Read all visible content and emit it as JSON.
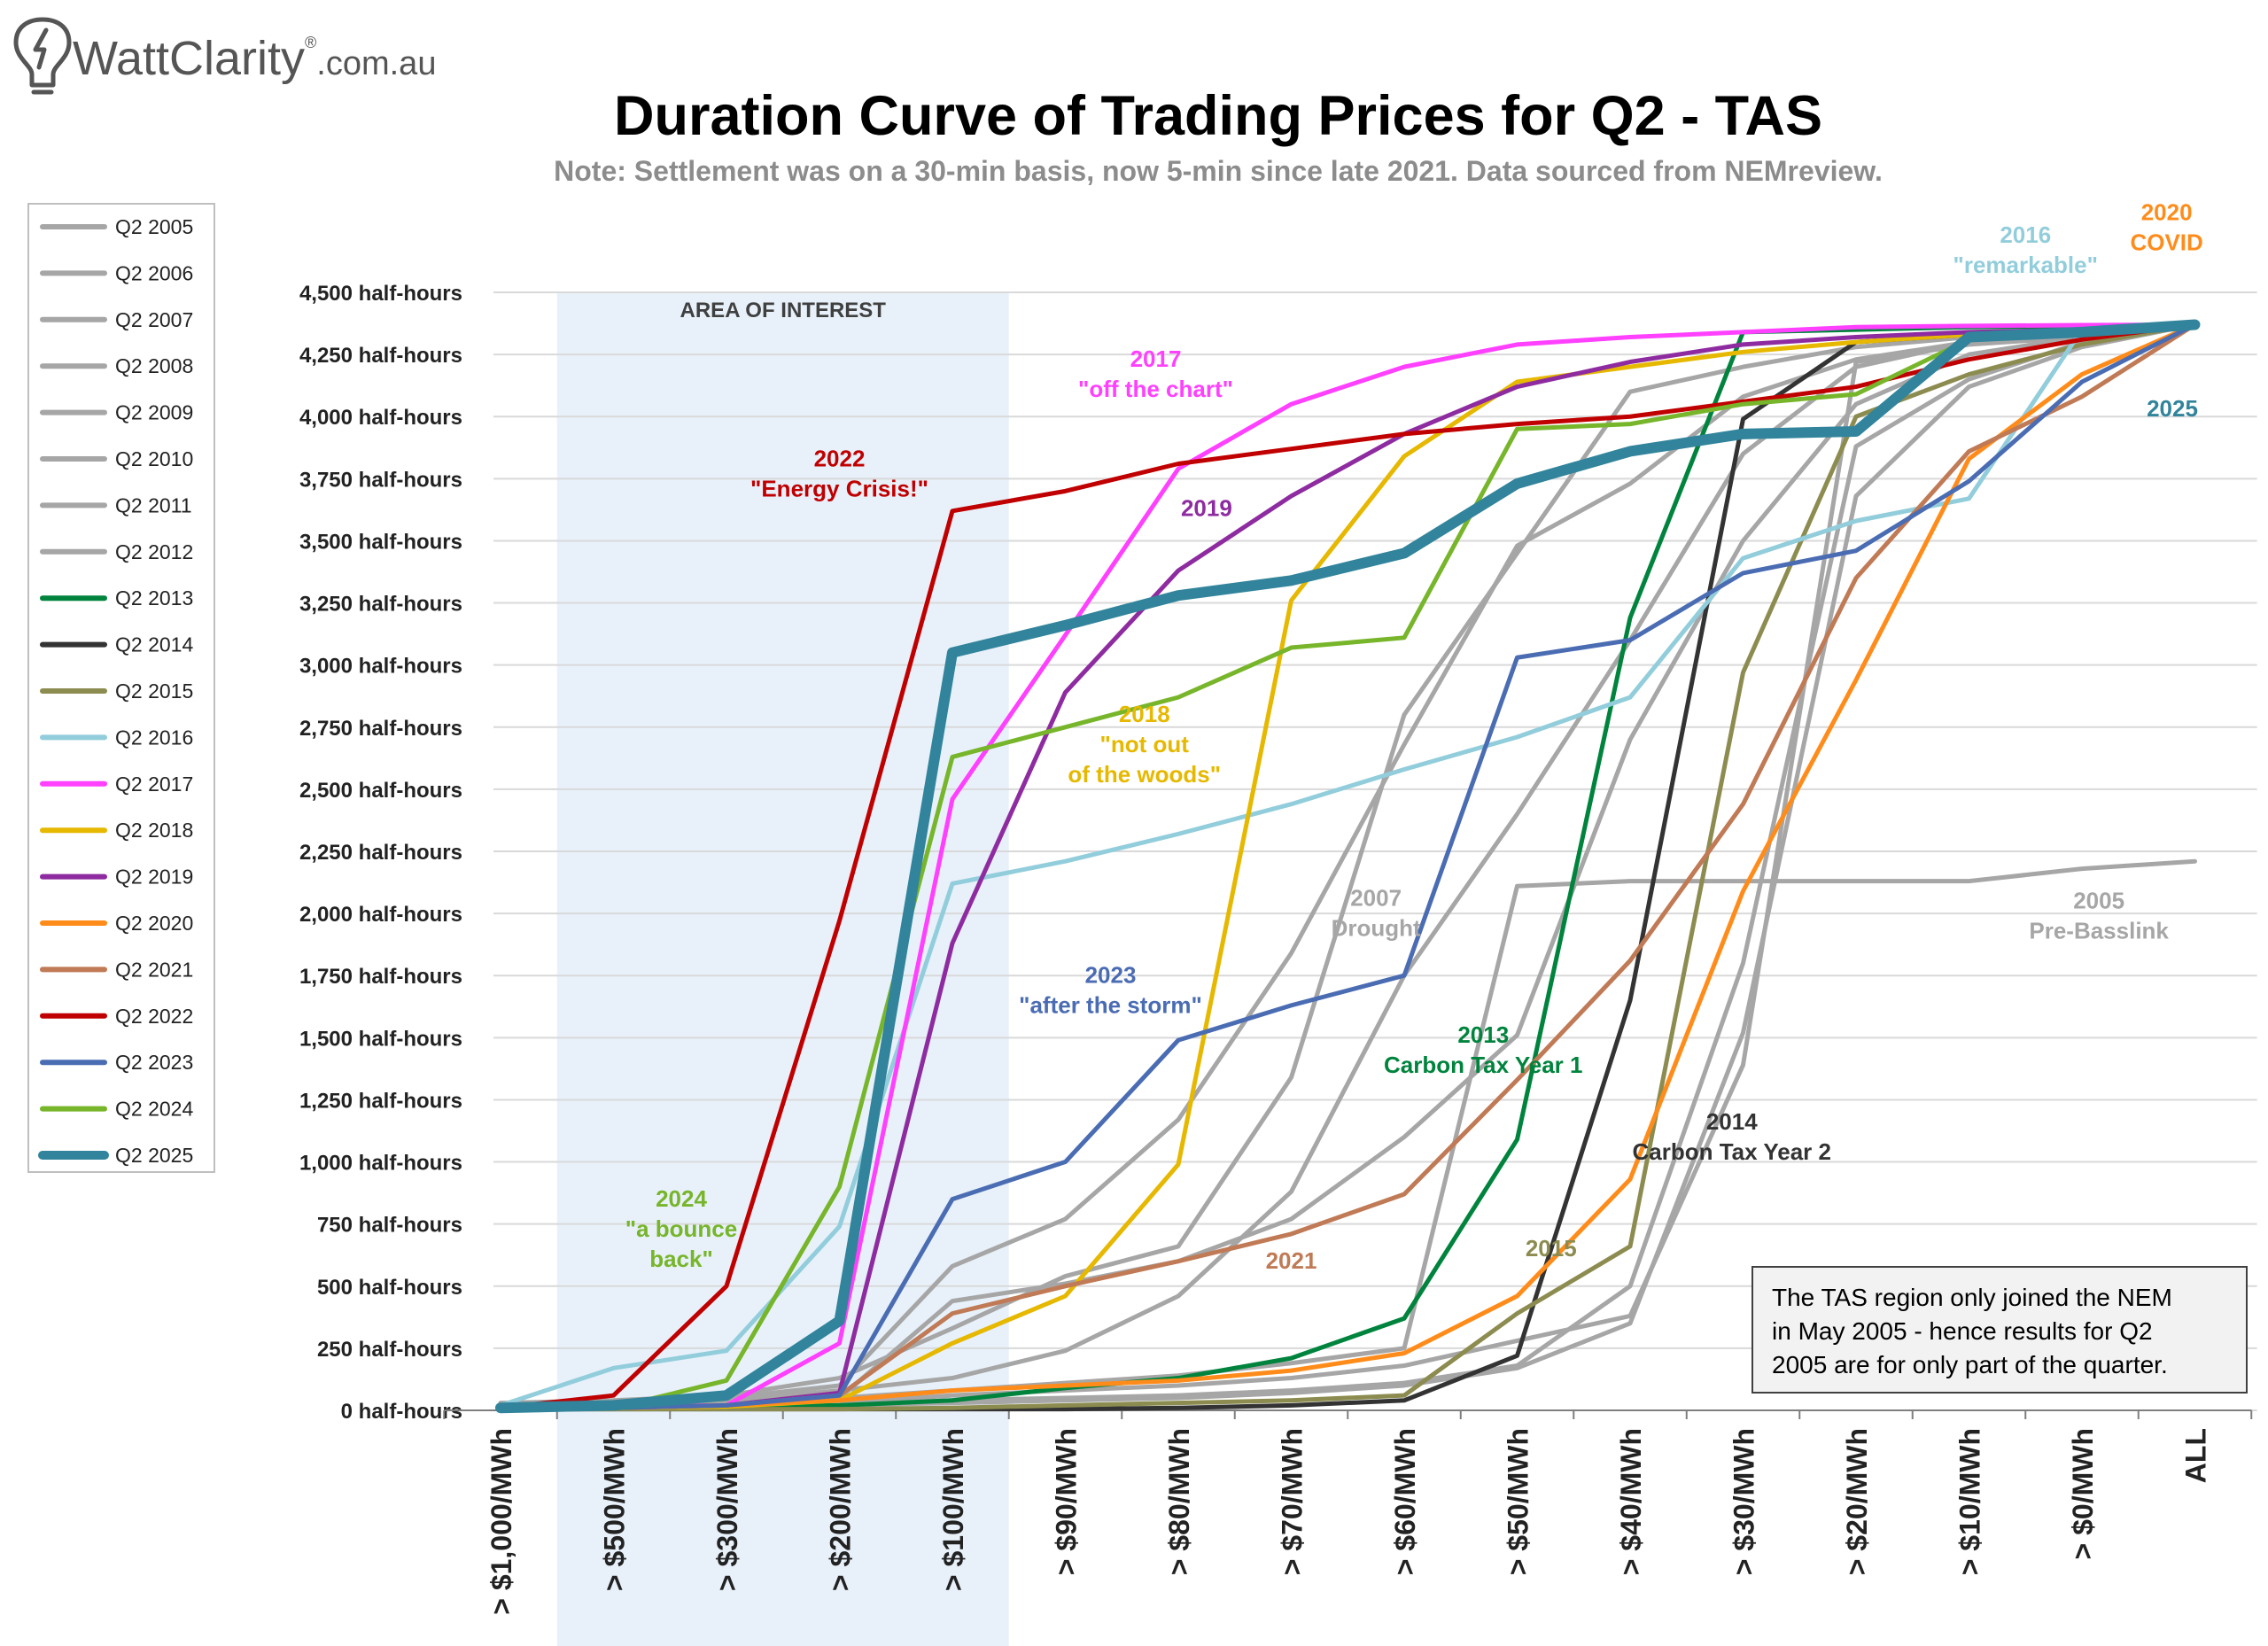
{
  "brand": {
    "name": "WattClarity",
    "registered": "®",
    "domain": ".com.au"
  },
  "chart_data": {
    "type": "line",
    "title": "Duration Curve of Trading Prices for Q2 - TAS",
    "subtitle": "Note: Settlement was on a 30-min basis, now 5-min since late 2021. Data sourced from NEMreview.",
    "xlabel": "",
    "ylabel": "",
    "categories": [
      "> $1,000/MWh",
      "> $500/MWh",
      "> $300/MWh",
      "> $200/MWh",
      "> $100/MWh",
      "> $90/MWh",
      "> $80/MWh",
      "> $70/MWh",
      "> $60/MWh",
      "> $50/MWh",
      "> $40/MWh",
      "> $30/MWh",
      "> $20/MWh",
      "> $10/MWh",
      "> $0/MWh",
      "ALL"
    ],
    "ylim": [
      0,
      4500
    ],
    "yticks": [
      0,
      250,
      500,
      750,
      1000,
      1250,
      1500,
      1750,
      2000,
      2250,
      2500,
      2750,
      3000,
      3250,
      3500,
      3750,
      4000,
      4250,
      4500
    ],
    "ytick_suffix": " half-hours",
    "grid": "horizontal",
    "legend_position": "left",
    "shaded_region": {
      "label": "AREA OF INTEREST",
      "from": "> $500/MWh",
      "to": "> $100/MWh",
      "color": "#e8f1fa"
    },
    "series": [
      {
        "name": "Q2 2005",
        "color": "#a6a6a6",
        "width": 5,
        "values": [
          20,
          25,
          30,
          50,
          80,
          110,
          140,
          190,
          250,
          2110,
          2130,
          2130,
          2130,
          2130,
          2180,
          2210
        ]
      },
      {
        "name": "Q2 2006",
        "color": "#a6a6a6",
        "width": 5,
        "values": [
          25,
          30,
          40,
          80,
          130,
          240,
          460,
          880,
          1750,
          2400,
          3100,
          3850,
          4200,
          4300,
          4340,
          4370
        ]
      },
      {
        "name": "Q2 2007",
        "color": "#a6a6a6",
        "width": 5,
        "values": [
          30,
          40,
          60,
          130,
          330,
          540,
          660,
          1340,
          2800,
          3450,
          4100,
          4200,
          4280,
          4320,
          4340,
          4370
        ]
      },
      {
        "name": "Q2 2008",
        "color": "#a6a6a6",
        "width": 5,
        "values": [
          20,
          30,
          50,
          100,
          580,
          770,
          1170,
          1840,
          2680,
          3480,
          3730,
          4080,
          4230,
          4300,
          4330,
          4370
        ]
      },
      {
        "name": "Q2 2009",
        "color": "#a6a6a6",
        "width": 5,
        "values": [
          15,
          20,
          30,
          50,
          440,
          510,
          600,
          770,
          1100,
          1510,
          2700,
          3500,
          4050,
          4250,
          4320,
          4370
        ]
      },
      {
        "name": "Q2 2010",
        "color": "#a6a6a6",
        "width": 5,
        "values": [
          10,
          15,
          20,
          30,
          60,
          80,
          100,
          130,
          180,
          280,
          380,
          1390,
          4220,
          4290,
          4320,
          4370
        ]
      },
      {
        "name": "Q2 2011",
        "color": "#a6a6a6",
        "width": 5,
        "values": [
          10,
          12,
          15,
          20,
          40,
          50,
          60,
          80,
          110,
          180,
          500,
          1800,
          3880,
          4150,
          4300,
          4370
        ]
      },
      {
        "name": "Q2 2012",
        "color": "#a6a6a6",
        "width": 5,
        "values": [
          10,
          12,
          15,
          20,
          30,
          40,
          50,
          70,
          100,
          170,
          350,
          1520,
          3680,
          4120,
          4280,
          4370
        ]
      },
      {
        "name": "Q2 2013",
        "color": "#00843d",
        "width": 5,
        "values": [
          10,
          12,
          15,
          20,
          40,
          90,
          130,
          210,
          370,
          1090,
          3190,
          4340,
          4350,
          4360,
          4365,
          4370
        ]
      },
      {
        "name": "Q2 2014",
        "color": "#333333",
        "width": 5,
        "values": [
          5,
          5,
          5,
          5,
          5,
          5,
          10,
          20,
          40,
          220,
          1650,
          3990,
          4300,
          4330,
          4350,
          4370
        ]
      },
      {
        "name": "Q2 2015",
        "color": "#8c8c50",
        "width": 5,
        "values": [
          5,
          5,
          5,
          5,
          10,
          20,
          30,
          40,
          60,
          390,
          660,
          2970,
          4000,
          4170,
          4290,
          4370
        ]
      },
      {
        "name": "Q2 2016",
        "color": "#92cddc",
        "width": 5,
        "values": [
          20,
          170,
          240,
          740,
          2120,
          2210,
          2320,
          2440,
          2580,
          2710,
          2870,
          3430,
          3580,
          3670,
          4350,
          4370
        ]
      },
      {
        "name": "Q2 2017",
        "color": "#ff40ff",
        "width": 5,
        "values": [
          10,
          15,
          20,
          270,
          2460,
          3120,
          3790,
          4050,
          4200,
          4290,
          4320,
          4340,
          4360,
          4365,
          4368,
          4370
        ]
      },
      {
        "name": "Q2 2018",
        "color": "#e6b800",
        "width": 5,
        "values": [
          5,
          10,
          15,
          40,
          270,
          460,
          990,
          3260,
          3840,
          4140,
          4200,
          4260,
          4300,
          4330,
          4350,
          4370
        ]
      },
      {
        "name": "Q2 2019",
        "color": "#8e2ba0",
        "width": 5,
        "values": [
          5,
          10,
          20,
          70,
          1880,
          2890,
          3380,
          3680,
          3930,
          4120,
          4220,
          4290,
          4320,
          4340,
          4350,
          4370
        ]
      },
      {
        "name": "Q2 2020",
        "color": "#ff8c1a",
        "width": 5,
        "values": [
          5,
          10,
          20,
          40,
          80,
          100,
          120,
          160,
          230,
          460,
          930,
          2090,
          2940,
          3830,
          4170,
          4370
        ]
      },
      {
        "name": "Q2 2021",
        "color": "#c07a55",
        "width": 5,
        "values": [
          5,
          10,
          20,
          60,
          390,
          500,
          600,
          710,
          870,
          1330,
          1810,
          2440,
          3350,
          3860,
          4080,
          4370
        ]
      },
      {
        "name": "Q2 2022",
        "color": "#c00000",
        "width": 5,
        "values": [
          10,
          60,
          500,
          1970,
          3620,
          3700,
          3810,
          3870,
          3930,
          3970,
          4000,
          4060,
          4120,
          4230,
          4310,
          4370
        ]
      },
      {
        "name": "Q2 2023",
        "color": "#4a6cb3",
        "width": 5,
        "values": [
          5,
          10,
          20,
          60,
          850,
          1000,
          1490,
          1630,
          1750,
          3030,
          3100,
          3370,
          3460,
          3740,
          4140,
          4370
        ]
      },
      {
        "name": "Q2 2024",
        "color": "#77b52a",
        "width": 5,
        "values": [
          5,
          10,
          120,
          900,
          2630,
          2750,
          2870,
          3070,
          3110,
          3950,
          3970,
          4050,
          4090,
          4310,
          4340,
          4370
        ]
      },
      {
        "name": "Q2 2025",
        "color": "#31849b",
        "width": 12,
        "values": [
          10,
          20,
          60,
          360,
          3050,
          3160,
          3280,
          3340,
          3450,
          3730,
          3860,
          3930,
          3940,
          4320,
          4340,
          4370
        ]
      }
    ],
    "annotations": [
      {
        "lines": [
          "AREA OF INTEREST"
        ],
        "color": "#404040",
        "cat": 2.5,
        "y": 4400,
        "size": 24
      },
      {
        "lines": [
          "2017",
          "\"off the chart\""
        ],
        "color": "#ff40ff",
        "cat": 5.8,
        "y": 4200,
        "size": 26
      },
      {
        "lines": [
          "2022",
          "\"Energy Crisis!\""
        ],
        "color": "#c00000",
        "cat": 3.0,
        "y": 3800,
        "size": 26
      },
      {
        "lines": [
          "2019"
        ],
        "color": "#8e2ba0",
        "cat": 6.25,
        "y": 3600,
        "size": 26
      },
      {
        "lines": [
          "2018",
          "\"not out",
          "of the woods\""
        ],
        "color": "#e6b800",
        "cat": 5.7,
        "y": 2770,
        "size": 26
      },
      {
        "lines": [
          "2007",
          "Drought"
        ],
        "color": "#a6a6a6",
        "cat": 7.75,
        "y": 2030,
        "size": 26
      },
      {
        "lines": [
          "2023",
          "\"after the storm\""
        ],
        "color": "#4a6cb3",
        "cat": 5.4,
        "y": 1720,
        "size": 26
      },
      {
        "lines": [
          "2013",
          "Carbon Tax Year 1"
        ],
        "color": "#00843d",
        "cat": 8.7,
        "y": 1480,
        "size": 26
      },
      {
        "lines": [
          "2014",
          "Carbon Tax Year 2"
        ],
        "color": "#333333",
        "cat": 10.9,
        "y": 1130,
        "size": 26
      },
      {
        "lines": [
          "2024",
          "\"a bounce",
          "back\""
        ],
        "color": "#77b52a",
        "cat": 1.6,
        "y": 820,
        "size": 26
      },
      {
        "lines": [
          "2021"
        ],
        "color": "#c07a55",
        "cat": 7.0,
        "y": 570,
        "size": 26
      },
      {
        "lines": [
          "2015"
        ],
        "color": "#8c8c50",
        "cat": 9.3,
        "y": 620,
        "size": 26
      },
      {
        "lines": [
          "2016",
          "\"remarkable\""
        ],
        "color": "#92cddc",
        "cat": 13.5,
        "y": 4700,
        "size": 26
      },
      {
        "lines": [
          "2020",
          "COVID"
        ],
        "color": "#ff8c1a",
        "cat": 14.75,
        "y": 4790,
        "size": 26
      },
      {
        "lines": [
          "2025"
        ],
        "color": "#31849b",
        "cat": 14.8,
        "y": 4000,
        "size": 26
      },
      {
        "lines": [
          "2005",
          "Pre-Basslink"
        ],
        "color": "#a6a6a6",
        "cat": 14.15,
        "y": 2020,
        "size": 26
      }
    ],
    "note_box": {
      "lines": [
        "The TAS region only joined the NEM",
        "in May 2005 - hence results for Q2",
        "2005 are for only part of the quarter."
      ]
    }
  }
}
